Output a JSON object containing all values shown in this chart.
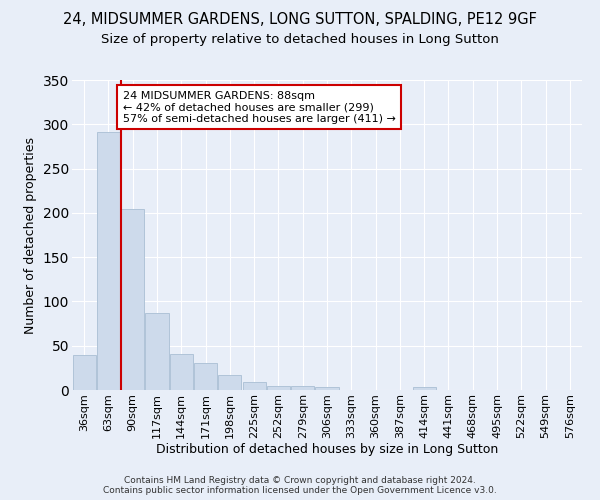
{
  "title": "24, MIDSUMMER GARDENS, LONG SUTTON, SPALDING, PE12 9GF",
  "subtitle": "Size of property relative to detached houses in Long Sutton",
  "xlabel": "Distribution of detached houses by size in Long Sutton",
  "ylabel": "Number of detached properties",
  "footnote1": "Contains HM Land Registry data © Crown copyright and database right 2024.",
  "footnote2": "Contains public sector information licensed under the Open Government Licence v3.0.",
  "bin_labels": [
    "36sqm",
    "63sqm",
    "90sqm",
    "117sqm",
    "144sqm",
    "171sqm",
    "198sqm",
    "225sqm",
    "252sqm",
    "279sqm",
    "306sqm",
    "333sqm",
    "360sqm",
    "387sqm",
    "414sqm",
    "441sqm",
    "468sqm",
    "495sqm",
    "522sqm",
    "549sqm",
    "576sqm"
  ],
  "bar_values": [
    40,
    291,
    204,
    87,
    41,
    30,
    17,
    9,
    5,
    5,
    3,
    0,
    0,
    0,
    3,
    0,
    0,
    0,
    0,
    0,
    0
  ],
  "bar_color": "#cddaeb",
  "bar_edge_color": "#b0c4d8",
  "property_line_color": "#cc0000",
  "annotation_text": "24 MIDSUMMER GARDENS: 88sqm\n← 42% of detached houses are smaller (299)\n57% of semi-detached houses are larger (411) →",
  "annotation_box_color": "#ffffff",
  "annotation_box_edge_color": "#cc0000",
  "ylim": [
    0,
    350
  ],
  "background_color": "#e8eef8",
  "grid_color": "#ffffff",
  "title_fontsize": 10.5,
  "subtitle_fontsize": 9.5,
  "ylabel_fontsize": 9,
  "xlabel_fontsize": 9,
  "tick_fontsize": 8,
  "annot_fontsize": 8,
  "footnote_fontsize": 6.5
}
